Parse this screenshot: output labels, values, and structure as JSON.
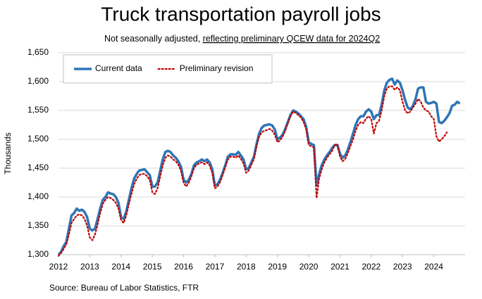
{
  "chart_data": {
    "type": "line",
    "title": "Truck transportation payroll jobs",
    "subtitle": "Not seasonally adjusted, ",
    "subtitle_link": "reflecting preliminary QCEW data for 2024Q2",
    "y_label": "Thousands",
    "source": "Source: Bureau of Labor Statistics, FTR",
    "legend": "top-left",
    "grid": true,
    "xlim": [
      2012,
      2025
    ],
    "xticks": [
      2012,
      2013,
      2014,
      2015,
      2016,
      2017,
      2018,
      2019,
      2020,
      2021,
      2022,
      2023,
      2024
    ],
    "ylim": [
      1300,
      1650
    ],
    "yticks": [
      {
        "value": 1300,
        "label": "1,300"
      },
      {
        "value": 1350,
        "label": "1,350"
      },
      {
        "value": 1400,
        "label": "1,400"
      },
      {
        "value": 1450,
        "label": "1,450"
      },
      {
        "value": 1500,
        "label": "1,500"
      },
      {
        "value": 1550,
        "label": "1,550"
      },
      {
        "value": 1600,
        "label": "1,600"
      },
      {
        "value": 1650,
        "label": "1,650"
      }
    ],
    "x": [
      2012,
      2012.083,
      2012.167,
      2012.25,
      2012.333,
      2012.417,
      2012.5,
      2012.583,
      2012.667,
      2012.75,
      2012.833,
      2012.917,
      2013,
      2013.083,
      2013.167,
      2013.25,
      2013.333,
      2013.417,
      2013.5,
      2013.583,
      2013.667,
      2013.75,
      2013.833,
      2013.917,
      2014,
      2014.083,
      2014.167,
      2014.25,
      2014.333,
      2014.417,
      2014.5,
      2014.583,
      2014.667,
      2014.75,
      2014.833,
      2014.917,
      2015,
      2015.083,
      2015.167,
      2015.25,
      2015.333,
      2015.417,
      2015.5,
      2015.583,
      2015.667,
      2015.75,
      2015.833,
      2015.917,
      2016,
      2016.083,
      2016.167,
      2016.25,
      2016.333,
      2016.417,
      2016.5,
      2016.583,
      2016.667,
      2016.75,
      2016.833,
      2016.917,
      2017,
      2017.083,
      2017.167,
      2017.25,
      2017.333,
      2017.417,
      2017.5,
      2017.583,
      2017.667,
      2017.75,
      2017.833,
      2017.917,
      2018,
      2018.083,
      2018.167,
      2018.25,
      2018.333,
      2018.417,
      2018.5,
      2018.583,
      2018.667,
      2018.75,
      2018.833,
      2018.917,
      2019,
      2019.083,
      2019.167,
      2019.25,
      2019.333,
      2019.417,
      2019.5,
      2019.583,
      2019.667,
      2019.75,
      2019.833,
      2019.917,
      2020,
      2020.083,
      2020.167,
      2020.25,
      2020.333,
      2020.417,
      2020.5,
      2020.583,
      2020.667,
      2020.75,
      2020.833,
      2020.917,
      2021,
      2021.083,
      2021.167,
      2021.25,
      2021.333,
      2021.417,
      2021.5,
      2021.583,
      2021.667,
      2021.75,
      2021.833,
      2021.917,
      2022,
      2022.083,
      2022.167,
      2022.25,
      2022.333,
      2022.417,
      2022.5,
      2022.583,
      2022.667,
      2022.75,
      2022.833,
      2022.917,
      2023,
      2023.083,
      2023.167,
      2023.25,
      2023.333,
      2023.417,
      2023.5,
      2023.583,
      2023.667,
      2023.75,
      2023.833,
      2023.917,
      2024,
      2024.083,
      2024.167,
      2024.25,
      2024.333,
      2024.417,
      2024.5,
      2024.583,
      2024.667,
      2024.75,
      2024.833
    ],
    "series": [
      {
        "name": "Current data",
        "color": "#2e75b6",
        "style": "solid",
        "values": [
          1300,
          1305,
          1315,
          1322,
          1345,
          1368,
          1372,
          1380,
          1376,
          1378,
          1374,
          1365,
          1345,
          1342,
          1345,
          1362,
          1380,
          1395,
          1400,
          1408,
          1406,
          1405,
          1400,
          1390,
          1365,
          1362,
          1375,
          1395,
          1415,
          1432,
          1440,
          1446,
          1447,
          1448,
          1443,
          1438,
          1418,
          1418,
          1425,
          1445,
          1465,
          1478,
          1480,
          1478,
          1472,
          1468,
          1462,
          1452,
          1430,
          1425,
          1430,
          1440,
          1455,
          1460,
          1462,
          1465,
          1462,
          1465,
          1460,
          1448,
          1420,
          1422,
          1430,
          1442,
          1455,
          1470,
          1474,
          1474,
          1473,
          1478,
          1472,
          1465,
          1448,
          1450,
          1460,
          1470,
          1492,
          1510,
          1520,
          1524,
          1525,
          1526,
          1524,
          1517,
          1500,
          1503,
          1508,
          1518,
          1530,
          1542,
          1550,
          1548,
          1545,
          1540,
          1535,
          1522,
          1495,
          1492,
          1490,
          1420,
          1440,
          1455,
          1465,
          1472,
          1478,
          1485,
          1490,
          1490,
          1475,
          1468,
          1472,
          1482,
          1495,
          1510,
          1525,
          1535,
          1540,
          1540,
          1548,
          1552,
          1548,
          1535,
          1542,
          1542,
          1560,
          1585,
          1598,
          1603,
          1605,
          1595,
          1602,
          1598,
          1585,
          1568,
          1555,
          1552,
          1558,
          1570,
          1588,
          1590,
          1590,
          1565,
          1562,
          1563,
          1565,
          1562,
          1530,
          1528,
          1532,
          1538,
          1545,
          1558,
          1560,
          1565,
          1562
        ]
      },
      {
        "name": "Preliminary revision",
        "color": "#c00000",
        "style": "dotted",
        "values": [
          1298,
          1303,
          1310,
          1318,
          1335,
          1355,
          1362,
          1368,
          1370,
          1368,
          1362,
          1350,
          1330,
          1325,
          1335,
          1352,
          1372,
          1388,
          1395,
          1400,
          1398,
          1395,
          1390,
          1380,
          1360,
          1355,
          1368,
          1388,
          1405,
          1422,
          1432,
          1438,
          1440,
          1440,
          1436,
          1430,
          1408,
          1405,
          1415,
          1435,
          1455,
          1468,
          1472,
          1470,
          1465,
          1462,
          1456,
          1445,
          1425,
          1418,
          1425,
          1436,
          1450,
          1456,
          1458,
          1460,
          1457,
          1460,
          1455,
          1442,
          1415,
          1418,
          1426,
          1438,
          1452,
          1465,
          1470,
          1470,
          1468,
          1472,
          1466,
          1458,
          1442,
          1446,
          1456,
          1466,
          1488,
          1505,
          1512,
          1515,
          1516,
          1518,
          1515,
          1508,
          1495,
          1498,
          1505,
          1515,
          1528,
          1540,
          1548,
          1546,
          1542,
          1538,
          1530,
          1518,
          1490,
          1488,
          1486,
          1398,
          1432,
          1448,
          1460,
          1468,
          1474,
          1480,
          1490,
          1492,
          1470,
          1462,
          1466,
          1476,
          1488,
          1500,
          1515,
          1525,
          1530,
          1528,
          1536,
          1540,
          1535,
          1510,
          1528,
          1532,
          1550,
          1575,
          1588,
          1592,
          1592,
          1586,
          1590,
          1585,
          1565,
          1550,
          1545,
          1548,
          1555,
          1562,
          1570,
          1565,
          1555,
          1550,
          1548,
          1540,
          1535,
          1505,
          1496,
          1500,
          1505,
          1512,
          null,
          null,
          null,
          null,
          null
        ]
      }
    ]
  }
}
